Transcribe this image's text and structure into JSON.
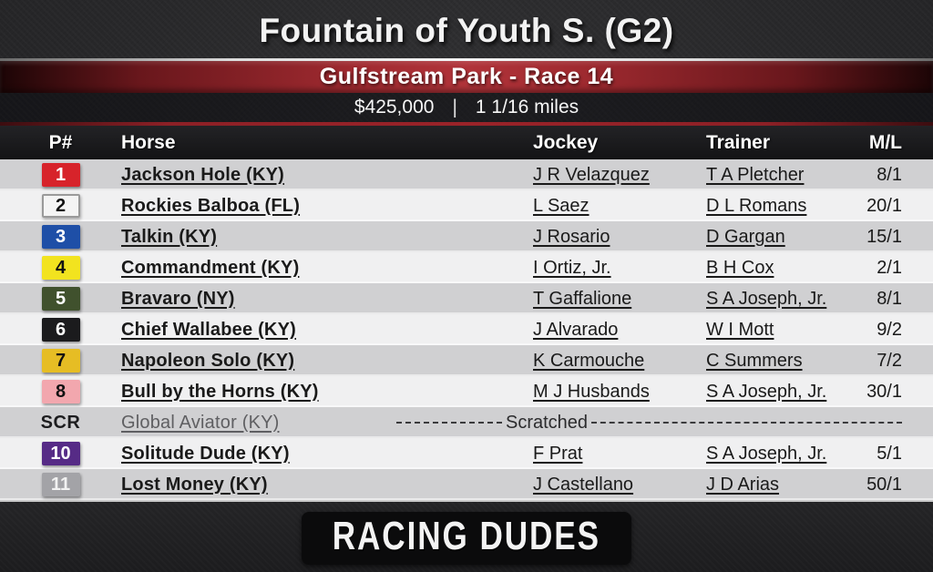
{
  "header": {
    "title": "Fountain of Youth S. (G2)",
    "banner": "Gulfstream Park - Race 14",
    "purse": "$425,000",
    "separator": "|",
    "distance": "1 1/16 miles"
  },
  "chart_data": {
    "type": "table",
    "title": "Fountain of Youth S. (G2)",
    "subtitle": "Gulfstream Park - Race 14",
    "purse": "$425,000",
    "distance": "1 1/16 miles",
    "columns": [
      "P#",
      "Horse",
      "Jockey",
      "Trainer",
      "M/L"
    ],
    "rows": [
      {
        "pn": "1",
        "horse": "Jackson Hole (KY)",
        "jockey": "J R Velazquez",
        "trainer": "T A Pletcher",
        "ml": "8/1",
        "badge_bg": "#d7232a",
        "badge_fg": "#ffffff"
      },
      {
        "pn": "2",
        "horse": "Rockies Balboa (FL)",
        "jockey": "L Saez",
        "trainer": "D L Romans",
        "ml": "20/1",
        "badge_bg": "#f4f4f4",
        "badge_fg": "#121212",
        "badge_border": "#9a9a9a"
      },
      {
        "pn": "3",
        "horse": "Talkin (KY)",
        "jockey": "J Rosario",
        "trainer": "D Gargan",
        "ml": "15/1",
        "badge_bg": "#1e4fa7",
        "badge_fg": "#ffffff"
      },
      {
        "pn": "4",
        "horse": "Commandment (KY)",
        "jockey": "I Ortiz, Jr.",
        "trainer": "B H Cox",
        "ml": "2/1",
        "badge_bg": "#f2e31f",
        "badge_fg": "#121212"
      },
      {
        "pn": "5",
        "horse": "Bravaro (NY)",
        "jockey": "T Gaffalione",
        "trainer": "S A Joseph, Jr.",
        "ml": "8/1",
        "badge_bg": "#40512d",
        "badge_fg": "#ffffff"
      },
      {
        "pn": "6",
        "horse": "Chief Wallabee (KY)",
        "jockey": "J Alvarado",
        "trainer": "W I Mott",
        "ml": "9/2",
        "badge_bg": "#1b1b1d",
        "badge_fg": "#ffffff"
      },
      {
        "pn": "7",
        "horse": "Napoleon Solo (KY)",
        "jockey": "K Carmouche",
        "trainer": "C Summers",
        "ml": "7/2",
        "badge_bg": "#e6bd24",
        "badge_fg": "#121212"
      },
      {
        "pn": "8",
        "horse": "Bull by the Horns (KY)",
        "jockey": "M J Husbands",
        "trainer": "S A Joseph, Jr.",
        "ml": "30/1",
        "badge_bg": "#f2a7ae",
        "badge_fg": "#121212"
      },
      {
        "pn": "SCR",
        "horse": "Global Aviator (KY)",
        "scratched": true,
        "scratched_label": "Scratched"
      },
      {
        "pn": "10",
        "horse": "Solitude Dude (KY)",
        "jockey": "F Prat",
        "trainer": "S A Joseph, Jr.",
        "ml": "5/1",
        "badge_bg": "#562b86",
        "badge_fg": "#ffffff"
      },
      {
        "pn": "11",
        "horse": "Lost Money (KY)",
        "jockey": "J Castellano",
        "trainer": "J D Arias",
        "ml": "50/1",
        "badge_bg": "#a3a3a7",
        "badge_fg": "#f2f2f2"
      }
    ]
  },
  "footer": {
    "logo": "RACING DUDES"
  },
  "colors": {
    "accent_red": "#a82a30",
    "divider_red": "#9a2329",
    "silver_line": "#e8e8e8",
    "row_odd": "#d0d0d2",
    "row_even": "#f0f0f1",
    "table_header_bg": "#18181a",
    "page_bg": "#28282a",
    "logo_bg": "#0b0b0c"
  }
}
